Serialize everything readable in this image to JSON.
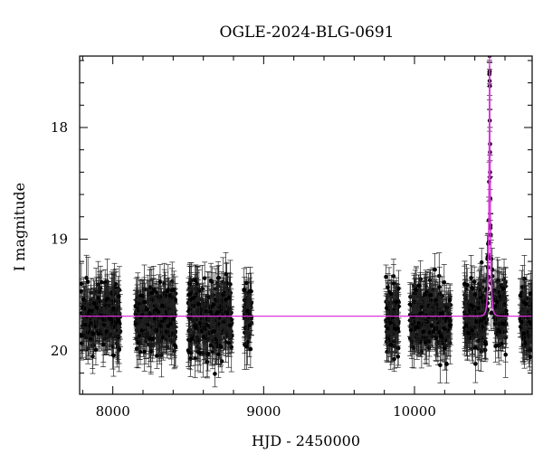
{
  "chart_data": {
    "type": "scatter",
    "title": "OGLE-2024-BLG-0691",
    "xlabel": "HJD - 2450000",
    "ylabel": "I magnitude",
    "xlim": [
      7780,
      10780
    ],
    "ylim": [
      20.39,
      17.36
    ],
    "y_inverted": true,
    "x_ticks": [
      8000,
      9000,
      10000
    ],
    "x_tick_labels": [
      "8000",
      "9000",
      "10000"
    ],
    "y_ticks": [
      18,
      19,
      20
    ],
    "y_tick_labels": [
      "18",
      "19",
      "20"
    ],
    "grid": false,
    "legend": "none",
    "series": [
      {
        "kind": "observations",
        "marker": "filled circle with error bars",
        "color": "#000000",
        "baseline_mag": 19.7,
        "typical_error": 0.15,
        "seasons": [
          {
            "x_start": 7790,
            "x_end": 8050,
            "mag_center": 19.7,
            "mag_spread": 0.28
          },
          {
            "x_start": 8150,
            "x_end": 8420,
            "mag_center": 19.7,
            "mag_spread": 0.28
          },
          {
            "x_start": 8500,
            "x_end": 8790,
            "mag_center": 19.72,
            "mag_spread": 0.33
          },
          {
            "x_start": 8870,
            "x_end": 8920,
            "mag_center": 19.7,
            "mag_spread": 0.3
          },
          {
            "x_start": 9810,
            "x_end": 9900,
            "mag_center": 19.72,
            "mag_spread": 0.32
          },
          {
            "x_start": 9970,
            "x_end": 10240,
            "mag_center": 19.7,
            "mag_spread": 0.28
          },
          {
            "x_start": 10330,
            "x_end": 10610,
            "mag_center": 19.7,
            "mag_spread": 0.3
          },
          {
            "x_start": 10700,
            "x_end": 10780,
            "mag_center": 19.75,
            "mag_spread": 0.3
          }
        ]
      },
      {
        "kind": "model",
        "color": "#dd33dd",
        "baseline_mag": 19.69,
        "t0": 10498,
        "peak_mag": 17.45,
        "u0": 0.12,
        "tE": 12
      }
    ]
  }
}
